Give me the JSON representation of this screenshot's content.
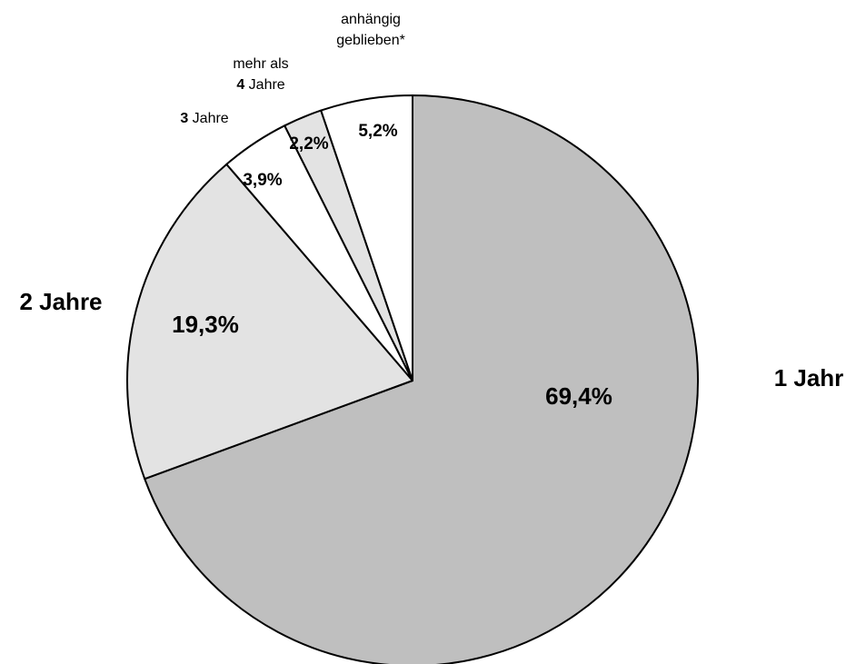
{
  "chart_data": {
    "type": "pie",
    "title": "",
    "slices": [
      {
        "label": "1 Jahr",
        "label_prefix": "",
        "label_rest": "1 Jahr",
        "value": 69.4,
        "value_label": "69,4%",
        "color": "#bfbfbf"
      },
      {
        "label": "2 Jahre",
        "label_prefix": "",
        "label_rest": "2 Jahre",
        "value": 19.3,
        "value_label": "19,3%",
        "color": "#e3e3e3"
      },
      {
        "label": "3 Jahre",
        "label_prefix": "3",
        "label_rest": " Jahre",
        "value": 3.9,
        "value_label": "3,9%",
        "color": "#ffffff"
      },
      {
        "label": "mehr als 4 Jahre",
        "label_line1": "mehr als",
        "label_prefix": "4",
        "label_rest": " Jahre",
        "value": 2.2,
        "value_label": "2,2%",
        "color": "#e3e3e3"
      },
      {
        "label": "anhängig geblieben*",
        "label_line1": "anhängig",
        "label_line2": "geblieben*",
        "value": 5.2,
        "value_label": "5,2%",
        "color": "#ffffff"
      }
    ]
  }
}
